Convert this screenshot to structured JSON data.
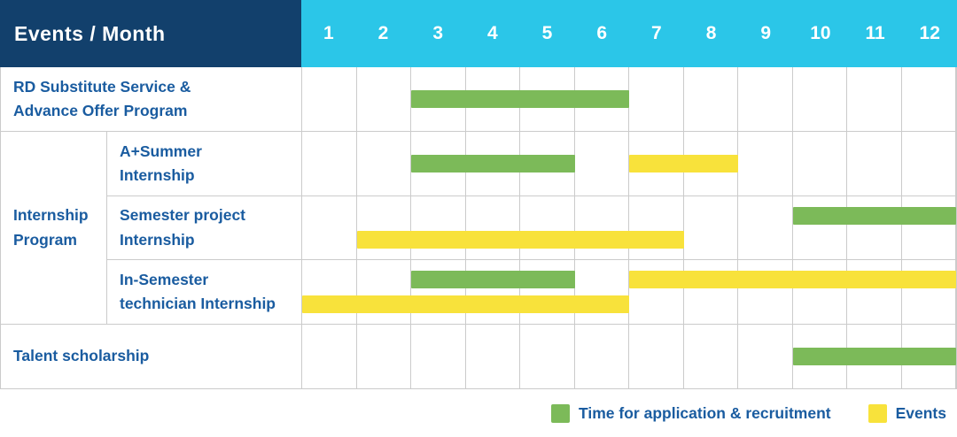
{
  "header": {
    "title": "Events / Month",
    "months": [
      "1",
      "2",
      "3",
      "4",
      "5",
      "6",
      "7",
      "8",
      "9",
      "10",
      "11",
      "12"
    ]
  },
  "colors": {
    "navy": "#12406C",
    "cyan": "#2BC6E8",
    "green": "#7CBA59",
    "yellow": "#F8E23B",
    "label_blue": "#1A5CA0",
    "grid": "#CBCBCB"
  },
  "chart_data": {
    "type": "gantt",
    "unit": "month",
    "axis": {
      "min": 1,
      "max": 12
    },
    "grid": true,
    "rows": [
      {
        "label": "RD Substitute Service &\nAdvance Offer Program",
        "group": "",
        "bars": [
          {
            "series": "recruitment",
            "start": 3,
            "end": 6,
            "line": "center"
          }
        ]
      },
      {
        "label": "A+Summer\nInternship",
        "group": "Internship\nProgram",
        "bars": [
          {
            "series": "recruitment",
            "start": 3,
            "end": 5,
            "line": "center"
          },
          {
            "series": "events",
            "start": 7,
            "end": 8,
            "line": "center"
          }
        ]
      },
      {
        "label": "Semester project\nInternship",
        "group": "Internship\nProgram",
        "bars": [
          {
            "series": "recruitment",
            "start": 10,
            "end": 12,
            "line": "top"
          },
          {
            "series": "events",
            "start": 2,
            "end": 7,
            "line": "bottom"
          }
        ]
      },
      {
        "label": "In-Semester\ntechnician Internship",
        "group": "Internship\nProgram",
        "bars": [
          {
            "series": "recruitment",
            "start": 3,
            "end": 5,
            "line": "top"
          },
          {
            "series": "events",
            "start": 7,
            "end": 12,
            "line": "top"
          },
          {
            "series": "events",
            "start": 1,
            "end": 6,
            "line": "bottom"
          }
        ]
      },
      {
        "label": "Talent scholarship",
        "group": "",
        "bars": [
          {
            "series": "recruitment",
            "start": 10,
            "end": 12,
            "line": "center"
          }
        ]
      }
    ],
    "legend": [
      {
        "series": "recruitment",
        "label": "Time for application & recruitment",
        "color": "#7CBA59"
      },
      {
        "series": "events",
        "label": "Events",
        "color": "#F8E23B"
      }
    ]
  }
}
